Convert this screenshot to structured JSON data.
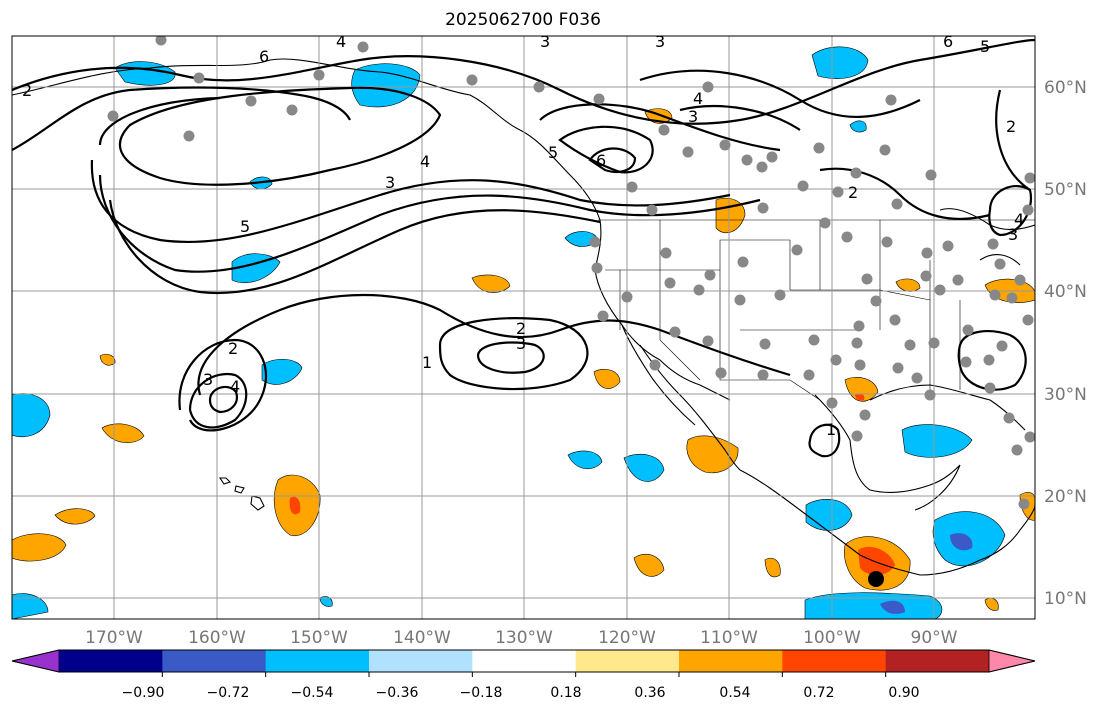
{
  "title": "2025062700 F036",
  "longitude_labels": [
    "170°W",
    "160°W",
    "150°W",
    "140°W",
    "130°W",
    "120°W",
    "110°W",
    "100°W",
    "90°W"
  ],
  "latitude_labels": [
    "60°N",
    "50°N",
    "40°N",
    "30°N",
    "20°N",
    "10°N"
  ],
  "colorbar": {
    "tick_labels": [
      "−0.90",
      "−0.72",
      "−0.54",
      "−0.36",
      "−0.18",
      "0.18",
      "0.36",
      "0.54",
      "0.72",
      "0.90"
    ],
    "colors": [
      "#9932CC",
      "#00008B",
      "#3A5BC7",
      "#00BFFF",
      "#B0E2FF",
      "#FFFFFF",
      "#FFE98C",
      "#FFA500",
      "#FF4500",
      "#B22222",
      "#FF88AA"
    ]
  },
  "contour_labels": [
    "2",
    "3",
    "4",
    "5",
    "6",
    "2",
    "3",
    "4",
    "5",
    "2",
    "3",
    "4",
    "1",
    "2",
    "3",
    "3",
    "4",
    "5",
    "6",
    "2",
    "3",
    "4",
    "1"
  ],
  "colors": {
    "land_outline": "#000000",
    "grid": "#999999",
    "station": "#888888"
  }
}
